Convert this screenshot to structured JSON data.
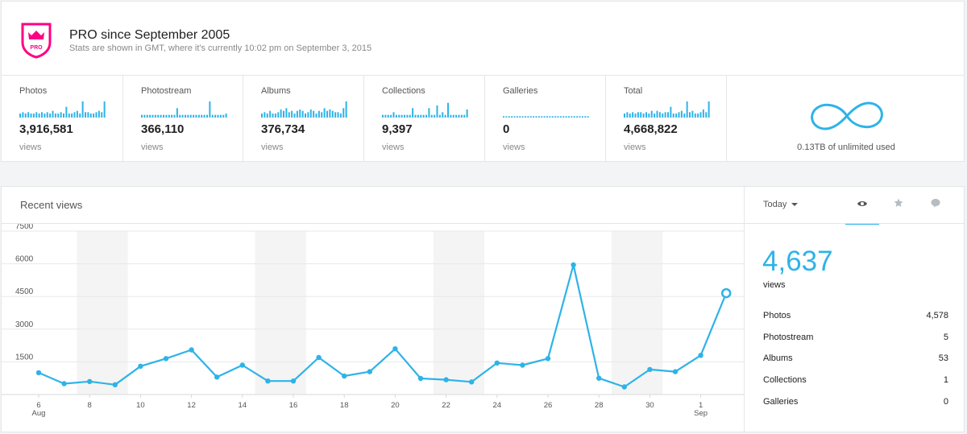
{
  "header": {
    "badge_text": "PRO",
    "title": "PRO since September 2005",
    "subtitle": "Stats are shown in GMT, where it's currently 10:02 pm on September 3, 2015",
    "brand_color": "#ff0084"
  },
  "stats": [
    {
      "label": "Photos",
      "value": "3,916,581",
      "unit": "views",
      "spark": [
        3,
        4,
        3,
        4,
        3,
        3,
        4,
        3,
        4,
        3,
        4,
        3,
        5,
        3,
        3,
        4,
        3,
        8,
        3,
        3,
        4,
        5,
        3,
        12,
        4,
        4,
        3,
        3,
        4,
        5,
        4,
        12
      ]
    },
    {
      "label": "Photostream",
      "value": "366,110",
      "unit": "views",
      "spark": [
        2,
        2,
        2,
        2,
        2,
        2,
        2,
        2,
        2,
        2,
        2,
        2,
        2,
        7,
        2,
        2,
        2,
        2,
        2,
        2,
        2,
        2,
        2,
        2,
        2,
        12,
        2,
        2,
        2,
        2,
        2,
        3
      ]
    },
    {
      "label": "Albums",
      "value": "376,734",
      "unit": "views",
      "spark": [
        3,
        4,
        3,
        5,
        3,
        3,
        4,
        6,
        5,
        7,
        4,
        5,
        3,
        5,
        6,
        5,
        3,
        4,
        6,
        5,
        3,
        5,
        4,
        7,
        5,
        6,
        5,
        4,
        4,
        3,
        7,
        12
      ]
    },
    {
      "label": "Collections",
      "value": "9,397",
      "unit": "views",
      "spark": [
        2,
        2,
        2,
        2,
        4,
        2,
        2,
        2,
        2,
        2,
        2,
        7,
        2,
        2,
        2,
        2,
        2,
        7,
        2,
        2,
        9,
        2,
        4,
        2,
        11,
        2,
        2,
        2,
        2,
        2,
        2,
        6
      ]
    },
    {
      "label": "Galleries",
      "value": "0",
      "unit": "views",
      "spark": [
        1,
        1,
        1,
        1,
        1,
        1,
        1,
        1,
        1,
        1,
        1,
        1,
        1,
        1,
        1,
        1,
        1,
        1,
        1,
        1,
        1,
        1,
        1,
        1,
        1,
        1,
        1,
        1,
        1,
        1,
        1,
        1
      ]
    },
    {
      "label": "Total",
      "value": "4,668,822",
      "unit": "views",
      "spark": [
        3,
        4,
        3,
        4,
        3,
        4,
        4,
        3,
        4,
        3,
        5,
        3,
        5,
        4,
        3,
        4,
        4,
        8,
        3,
        3,
        4,
        5,
        3,
        12,
        4,
        5,
        3,
        3,
        4,
        6,
        4,
        12
      ]
    }
  ],
  "storage": {
    "used_text": "0.13TB of unlimited used"
  },
  "recent": {
    "title": "Recent views",
    "period": "Today",
    "total": "4,637",
    "total_unit": "views",
    "breakdown": [
      {
        "label": "Photos",
        "value": "4,578"
      },
      {
        "label": "Photostream",
        "value": "5"
      },
      {
        "label": "Albums",
        "value": "53"
      },
      {
        "label": "Collections",
        "value": "1"
      },
      {
        "label": "Galleries",
        "value": "0"
      }
    ],
    "accent_color": "#2eb3e8"
  },
  "chart_data": {
    "type": "line",
    "title": "Recent views",
    "y_ticks": [
      "7500",
      "6000",
      "4500",
      "3000",
      "1500"
    ],
    "ylim": [
      0,
      7500
    ],
    "x_tick_labels": [
      "6",
      "8",
      "10",
      "12",
      "14",
      "16",
      "18",
      "20",
      "22",
      "24",
      "26",
      "28",
      "30",
      "1"
    ],
    "month_labels": [
      "Aug",
      "Sep"
    ],
    "x": [
      "Aug 6",
      "Aug 7",
      "Aug 8",
      "Aug 9",
      "Aug 10",
      "Aug 11",
      "Aug 12",
      "Aug 13",
      "Aug 14",
      "Aug 15",
      "Aug 16",
      "Aug 17",
      "Aug 18",
      "Aug 19",
      "Aug 20",
      "Aug 21",
      "Aug 22",
      "Aug 23",
      "Aug 24",
      "Aug 25",
      "Aug 26",
      "Aug 27",
      "Aug 28",
      "Aug 29",
      "Aug 30",
      "Aug 31",
      "Sep 1",
      "Sep 2"
    ],
    "values": [
      1000,
      500,
      600,
      450,
      1300,
      1650,
      2050,
      800,
      1350,
      620,
      620,
      1700,
      850,
      1050,
      2100,
      740,
      680,
      580,
      1450,
      1350,
      1650,
      5950,
      750,
      350,
      1150,
      1050,
      1800,
      4650
    ],
    "weekend_bands": [
      "Aug 8-9",
      "Aug 15-16",
      "Aug 22-23",
      "Aug 29-30"
    ],
    "grid": true
  }
}
